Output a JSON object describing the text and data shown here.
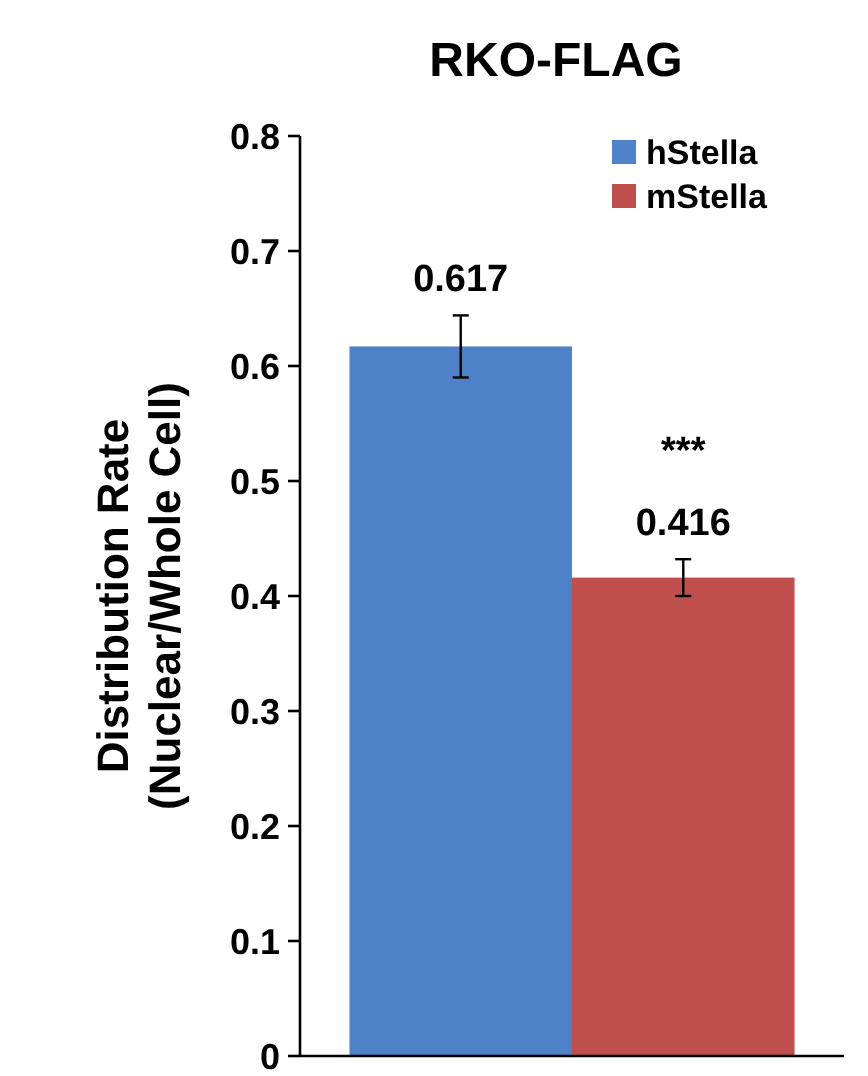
{
  "chart_data": {
    "type": "bar",
    "title": "RKO-FLAG",
    "ylabel": "Distribution Rate\n(Nuclear/Whole Cell)",
    "categories": [
      null
    ],
    "series": [
      {
        "name": "hStella",
        "color": "#4f81c8",
        "values": [
          0.617
        ],
        "errors": [
          0.027
        ]
      },
      {
        "name": "mStella",
        "color": "#c0504d",
        "values": [
          0.416
        ],
        "errors": [
          0.016
        ]
      }
    ],
    "ylim": [
      0,
      0.8
    ],
    "yticks": [
      0,
      0.1,
      0.2,
      0.3,
      0.4,
      0.5,
      0.6,
      0.7,
      0.8
    ],
    "data_labels": true,
    "legend": "top right",
    "annotations": [
      "***"
    ],
    "grid": false
  }
}
